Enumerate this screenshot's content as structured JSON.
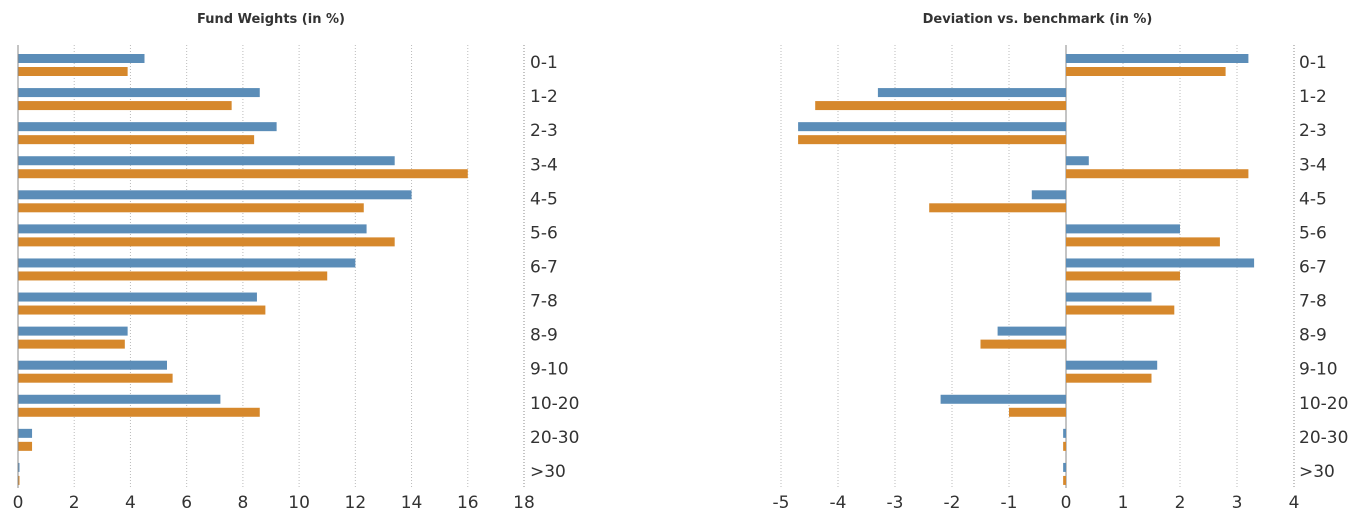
{
  "charts": {
    "colors": {
      "series_a": "#5b8db8",
      "series_b": "#d6882c"
    },
    "chart_data": [
      {
        "type": "bar",
        "orientation": "horizontal",
        "title": "Fund Weights (in %)",
        "categories": [
          "0-1",
          "1-2",
          "2-3",
          "3-4",
          "4-5",
          "5-6",
          "6-7",
          "7-8",
          "8-9",
          "9-10",
          "10-20",
          "20-30",
          ">30"
        ],
        "series": [
          {
            "values": [
              4.5,
              8.6,
              9.2,
              13.4,
              14.0,
              12.4,
              12.0,
              8.5,
              3.9,
              5.3,
              7.2,
              0.5,
              0
            ]
          },
          {
            "values": [
              3.9,
              7.6,
              8.4,
              16.0,
              12.3,
              13.4,
              11.0,
              8.8,
              3.8,
              5.5,
              8.6,
              0.5,
              0
            ]
          }
        ],
        "xlim": [
          0,
          18
        ],
        "xticks": [
          "0",
          "2",
          "4",
          "6",
          "8",
          "10",
          "12",
          "14",
          "16",
          "18"
        ],
        "grid": "vertical dotted"
      },
      {
        "type": "bar",
        "orientation": "horizontal",
        "title": "Deviation vs. benchmark (in %)",
        "categories": [
          "0-1",
          "1-2",
          "2-3",
          "3-4",
          "4-5",
          "5-6",
          "6-7",
          "7-8",
          "8-9",
          "9-10",
          "10-20",
          "20-30",
          ">30"
        ],
        "series": [
          {
            "values": [
              3.2,
              -3.3,
              -4.7,
              0.4,
              -0.6,
              2.0,
              3.3,
              1.5,
              -1.2,
              1.6,
              -2.2,
              -0.05,
              -0.05
            ]
          },
          {
            "values": [
              2.8,
              -4.4,
              -4.7,
              3.2,
              -2.4,
              2.7,
              2.0,
              1.9,
              -1.5,
              1.5,
              -1.0,
              -0.05,
              -0.05
            ]
          }
        ],
        "xlim": [
          -5,
          4
        ],
        "xticks": [
          "-5",
          "-4",
          "-3",
          "-2",
          "-1",
          "0",
          "1",
          "2",
          "3",
          "4"
        ],
        "grid": "vertical dotted"
      }
    ]
  }
}
